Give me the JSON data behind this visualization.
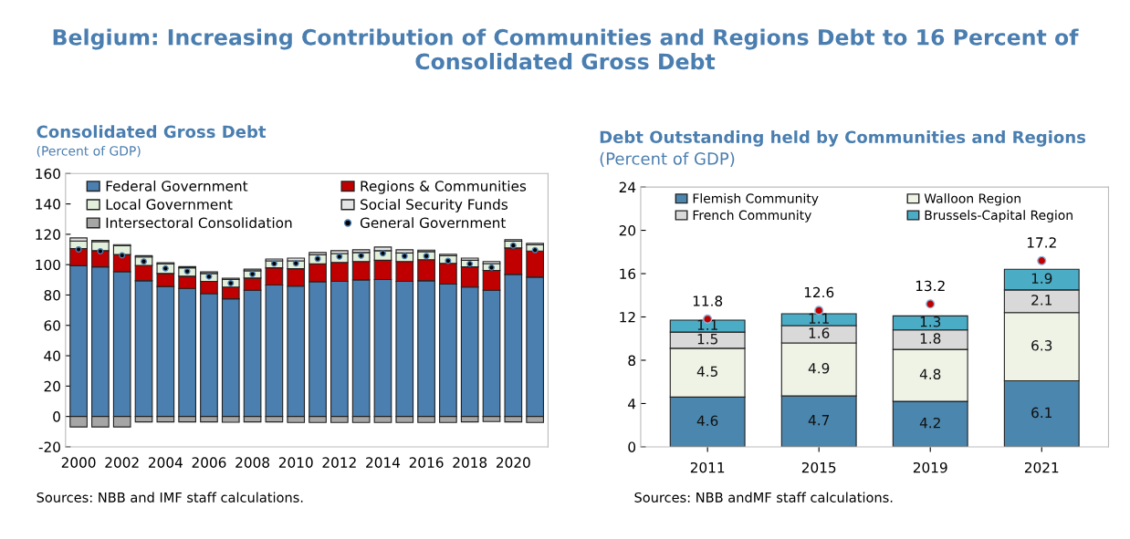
{
  "chart_data": [
    {
      "type": "bar",
      "stacked": true,
      "title": "Consolidated Gross Debt",
      "subtitle": "(Percent of GDP)",
      "annotations": [
        "Belgium: Increasing Contribution of Communities and Regions Debt to 16 Percent of Consolidated Gross Debt",
        "Sources: NBB and IMF staff calculations."
      ],
      "categories": [
        "2000",
        null,
        "2002",
        null,
        "2004",
        null,
        "2006",
        null,
        "2008",
        null,
        "2010",
        null,
        "2012",
        null,
        "2014",
        null,
        "2016",
        null,
        "2018",
        null,
        "2020",
        null
      ],
      "series": [
        {
          "name": "Federal Government",
          "color": "#4a7fb0",
          "values": [
            99.3,
            98.5,
            95.4,
            89.4,
            85.6,
            84.3,
            80.9,
            77.5,
            83.1,
            86.6,
            85.8,
            88.8,
            89.0,
            90.0,
            90.2,
            89.0,
            89.4,
            87.2,
            85.2,
            83.1,
            93.6,
            91.8
          ]
        },
        {
          "name": "Regions & Communities",
          "color": "#c00000",
          "values": [
            11.3,
            10.7,
            11.3,
            10.1,
            8.6,
            8.1,
            8.1,
            7.7,
            8.1,
            11.3,
            11.5,
            11.7,
            12.5,
            12.1,
            12.7,
            13.1,
            13.9,
            13.7,
            13.3,
            13.1,
            17.4,
            17.2
          ]
        },
        {
          "name": "Local Government",
          "color": "#e2efda",
          "values": [
            5.0,
            6.0,
            5.7,
            5.6,
            6.3,
            5.5,
            5.2,
            5.0,
            4.8,
            4.6,
            5.2,
            6.0,
            5.8,
            5.9,
            6.3,
            5.6,
            5.3,
            5.0,
            4.4,
            4.5,
            4.4,
            4.0
          ]
        },
        {
          "name": "Social Security Funds",
          "color": "#e4e4e4",
          "values": [
            2.0,
            0.8,
            0.8,
            0.8,
            0.8,
            0.8,
            1.0,
            0.8,
            1.0,
            1.2,
            1.8,
            1.5,
            1.9,
            1.8,
            2.4,
            2.1,
            1.0,
            1.0,
            1.4,
            1.4,
            1.0,
            1.0
          ]
        },
        {
          "name": "Intersectoral Consolidation",
          "color": "#a6a6a6",
          "values": [
            -6.9,
            -6.9,
            -6.9,
            -3.6,
            -3.6,
            -3.6,
            -3.6,
            -3.8,
            -3.6,
            -3.6,
            -4.0,
            -4.0,
            -4.0,
            -4.0,
            -4.0,
            -4.0,
            -4.0,
            -4.0,
            -3.6,
            -3.4,
            -3.6,
            -4.0
          ]
        },
        {
          "name": "General Government",
          "type": "scatter",
          "color": "#000000",
          "values": [
            110.0,
            108.8,
            106.1,
            102.1,
            97.5,
            95.6,
            92.2,
            87.8,
            93.8,
            100.7,
            100.9,
            103.9,
            105.3,
            105.9,
            107.5,
            105.7,
            105.7,
            102.5,
            100.5,
            98.1,
            112.6,
            109.6
          ]
        }
      ],
      "ylim": [
        -20,
        160
      ],
      "yticks": [
        -20,
        0,
        20,
        40,
        60,
        80,
        100,
        120,
        140,
        160
      ],
      "legend": "top",
      "marker": "circle"
    },
    {
      "type": "bar",
      "stacked": true,
      "title": "Debt Outstanding held by Communities and Regions",
      "subtitle": "(Percent of GDP)",
      "annotations": [
        "Sources: NBB andMF staff calculations."
      ],
      "categories": [
        "2011",
        "2015",
        "2019",
        "2021"
      ],
      "series": [
        {
          "name": "Flemish Community",
          "color": "#4a86ad",
          "values": [
            4.6,
            4.7,
            4.2,
            6.1
          ]
        },
        {
          "name": "Walloon Region",
          "color": "#eef3e6",
          "values": [
            4.5,
            4.9,
            4.8,
            6.3
          ]
        },
        {
          "name": "French Community",
          "color": "#d9d9d9",
          "values": [
            1.5,
            1.6,
            1.8,
            2.1
          ]
        },
        {
          "name": "Brussels-Capital Region",
          "color": "#4bacc6",
          "values": [
            1.1,
            1.1,
            1.3,
            1.9
          ]
        },
        {
          "type": "scatter",
          "color": "#c00000",
          "values": [
            11.8,
            12.6,
            13.2,
            17.2
          ]
        }
      ],
      "ylim": [
        0,
        24
      ],
      "yticks": [
        0,
        4,
        8,
        12,
        16,
        20,
        24
      ],
      "legend": "top",
      "marker": "circle",
      "data_labels": true
    }
  ]
}
